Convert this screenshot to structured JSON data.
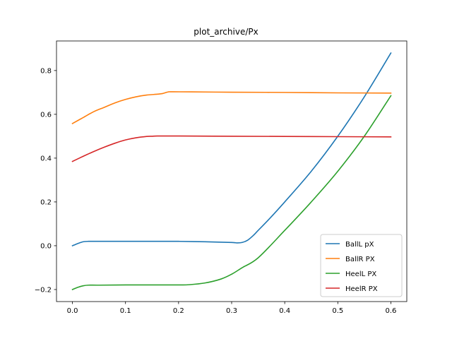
{
  "chart_data": {
    "type": "line",
    "title": "plot_archive/Px",
    "xlabel": "",
    "ylabel": "",
    "xlim": [
      -0.03,
      0.63
    ],
    "ylim": [
      -0.255,
      0.935
    ],
    "xticks": [
      0.0,
      0.1,
      0.2,
      0.3,
      0.4,
      0.5,
      0.6
    ],
    "xtick_labels": [
      "0.0",
      "0.1",
      "0.2",
      "0.3",
      "0.4",
      "0.5",
      "0.6"
    ],
    "yticks": [
      -0.2,
      0.0,
      0.2,
      0.4,
      0.6,
      0.8
    ],
    "ytick_labels": [
      "−0.2",
      "0.0",
      "0.2",
      "0.4",
      "0.6",
      "0.8"
    ],
    "grid": false,
    "legend_position": "lower-right",
    "series": [
      {
        "name": "BallL pX",
        "color": "#1f77b4",
        "x": [
          0.0,
          0.01,
          0.02,
          0.03,
          0.05,
          0.1,
          0.15,
          0.2,
          0.25,
          0.3,
          0.31,
          0.32,
          0.33,
          0.34,
          0.35,
          0.37,
          0.4,
          0.45,
          0.5,
          0.55,
          0.6
        ],
        "y": [
          0.0,
          0.01,
          0.018,
          0.02,
          0.02,
          0.02,
          0.02,
          0.02,
          0.018,
          0.015,
          0.013,
          0.015,
          0.025,
          0.045,
          0.07,
          0.12,
          0.2,
          0.34,
          0.5,
          0.68,
          0.88
        ]
      },
      {
        "name": "BallR PX",
        "color": "#ff7f0e",
        "x": [
          0.0,
          0.02,
          0.04,
          0.06,
          0.08,
          0.1,
          0.12,
          0.14,
          0.16,
          0.17,
          0.18,
          0.19,
          0.25,
          0.3,
          0.4,
          0.5,
          0.6
        ],
        "y": [
          0.558,
          0.585,
          0.612,
          0.632,
          0.652,
          0.668,
          0.68,
          0.688,
          0.692,
          0.695,
          0.702,
          0.703,
          0.702,
          0.701,
          0.7,
          0.698,
          0.697
        ]
      },
      {
        "name": "HeelL PX",
        "color": "#2ca02c",
        "x": [
          0.0,
          0.01,
          0.02,
          0.03,
          0.05,
          0.1,
          0.15,
          0.2,
          0.22,
          0.25,
          0.28,
          0.3,
          0.32,
          0.35,
          0.4,
          0.45,
          0.5,
          0.55,
          0.6
        ],
        "y": [
          -0.2,
          -0.19,
          -0.183,
          -0.18,
          -0.18,
          -0.179,
          -0.179,
          -0.179,
          -0.178,
          -0.17,
          -0.152,
          -0.13,
          -0.1,
          -0.055,
          0.07,
          0.2,
          0.34,
          0.5,
          0.685
        ]
      },
      {
        "name": "HeelR PX",
        "color": "#d62728",
        "x": [
          0.0,
          0.02,
          0.04,
          0.06,
          0.08,
          0.1,
          0.12,
          0.14,
          0.15,
          0.16,
          0.2,
          0.3,
          0.4,
          0.5,
          0.6
        ],
        "y": [
          0.385,
          0.408,
          0.43,
          0.45,
          0.468,
          0.483,
          0.493,
          0.499,
          0.5,
          0.501,
          0.501,
          0.5,
          0.499,
          0.498,
          0.497
        ]
      }
    ]
  }
}
